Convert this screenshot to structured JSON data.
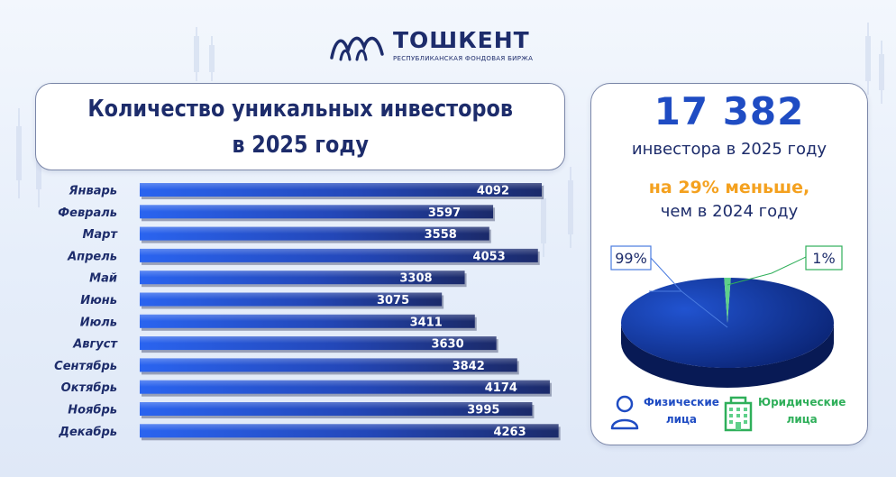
{
  "logo": {
    "name": "ТОШКЕНТ",
    "tagline": "РЕСПУБЛИКАНСКАЯ ФОНДОВАЯ БИРЖА"
  },
  "title": {
    "line1": "Количество уникальных инвесторов",
    "line2": "в 2025 году"
  },
  "summary": {
    "total": "17 382",
    "total_label": "инвестора в 2025 году",
    "change": "на 29% меньше,",
    "change_label": "чем в 2024 году"
  },
  "legend": {
    "individuals": [
      "Физические",
      "лица"
    ],
    "legal": [
      "Юридические",
      "лица"
    ]
  },
  "colors": {
    "bar_dark": "#1b2a6a",
    "bar_light": "#2a64f0",
    "accent_orange": "#f4a11f",
    "individuals": "#123488",
    "legal": "#5fd08a",
    "title_text": "#1d2c6b"
  },
  "chart_data": [
    {
      "type": "bar",
      "orientation": "horizontal",
      "categories": [
        "Январь",
        "Февраль",
        "Март",
        "Апрель",
        "Май",
        "Июнь",
        "Июль",
        "Август",
        "Сентябрь",
        "Октябрь",
        "Ноябрь",
        "Декабрь"
      ],
      "values": [
        4092,
        3597,
        3558,
        4053,
        3308,
        3075,
        3411,
        3630,
        3842,
        4174,
        3995,
        4263
      ],
      "labels": [
        "4092",
        "3597",
        "3558",
        "4053",
        "3308",
        "3075",
        "3411",
        "3630",
        "3842",
        "4174",
        "3995",
        "4263"
      ],
      "title": "Количество уникальных инвесторов в 2025 году",
      "xlabel": "",
      "ylabel": ""
    },
    {
      "type": "pie",
      "categories": [
        "Физические лица",
        "Юридические лица"
      ],
      "values": [
        99,
        1
      ],
      "labels": [
        "99%",
        "1%"
      ]
    }
  ]
}
